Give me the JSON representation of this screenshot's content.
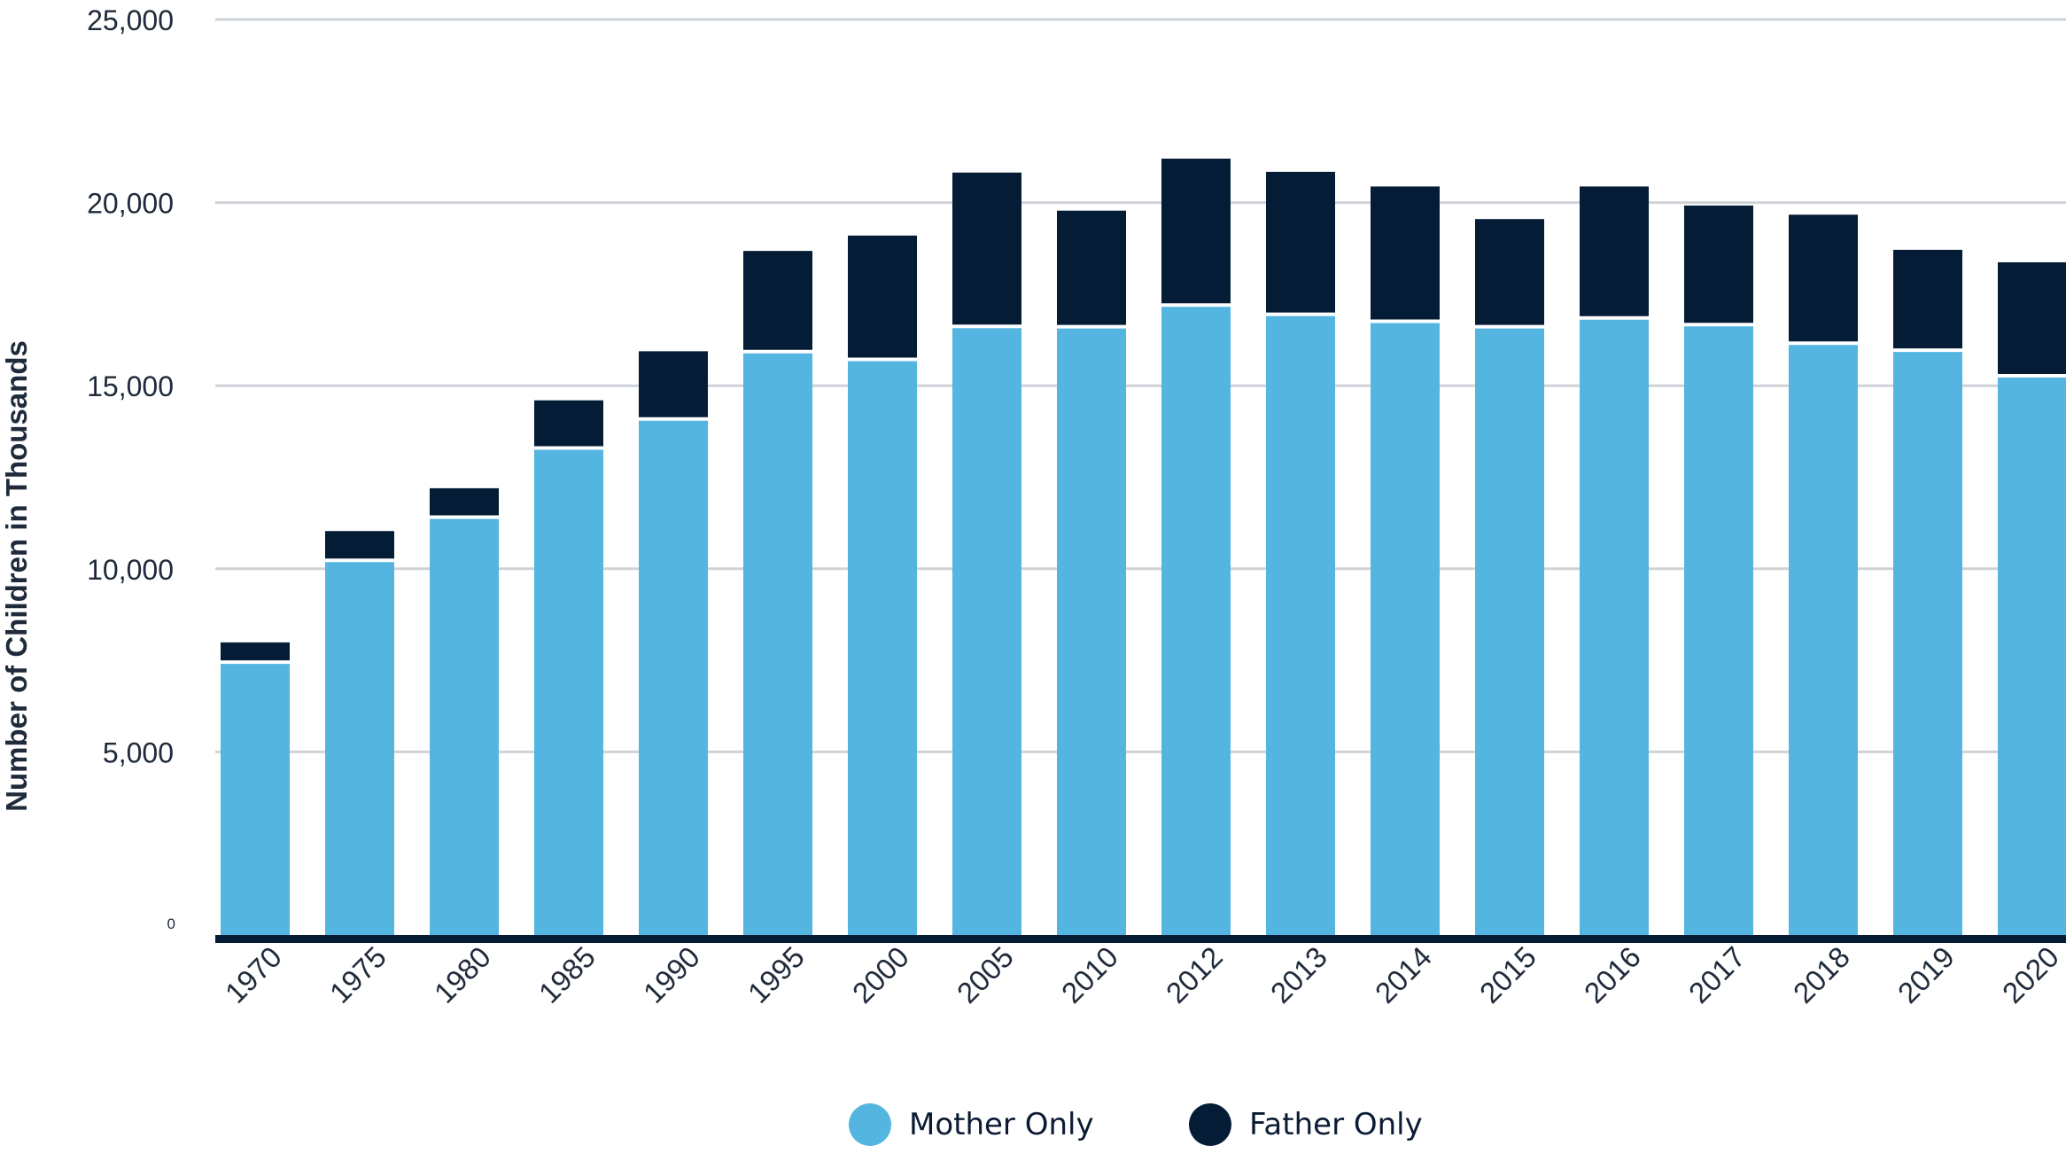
{
  "chart_data": {
    "type": "bar",
    "stacked": true,
    "categories": [
      "1970",
      "1975",
      "1980",
      "1985",
      "1990",
      "1995",
      "2000",
      "2005",
      "2010",
      "2012",
      "2013",
      "2014",
      "2015",
      "2016",
      "2017",
      "2018",
      "2019",
      "2020"
    ],
    "series": [
      {
        "name": "Mother Only",
        "color": "#54b5e0",
        "values": [
          7450,
          10230,
          11410,
          13300,
          14090,
          15930,
          15720,
          16620,
          16610,
          17200,
          16950,
          16760,
          16610,
          16850,
          16670,
          16160,
          15970,
          15270
        ]
      },
      {
        "name": "Father Only",
        "color": "#041c35",
        "values": [
          540,
          800,
          790,
          1300,
          1850,
          2750,
          3380,
          4200,
          3170,
          4000,
          3890,
          3680,
          2940,
          3590,
          3250,
          3510,
          2740,
          3100
        ]
      }
    ],
    "ylabel": "Number of Children in Thousands",
    "xlabel": "",
    "ylim": [
      0,
      25000
    ],
    "yticks": [
      {
        "value": 0,
        "label": "0"
      },
      {
        "value": 5000,
        "label": "5,000"
      },
      {
        "value": 10000,
        "label": "10,000"
      },
      {
        "value": 15000,
        "label": "15,000"
      },
      {
        "value": 20000,
        "label": "20,000"
      },
      {
        "value": 25000,
        "label": "25,000"
      }
    ],
    "grid": true,
    "legend_position": "bottom"
  },
  "legend": {
    "mother_label": "Mother Only",
    "father_label": "Father Only"
  },
  "colors": {
    "mother": "#54b5e0",
    "father": "#041c35",
    "grid": "#cfd3d8",
    "baseline": "#041c35"
  }
}
